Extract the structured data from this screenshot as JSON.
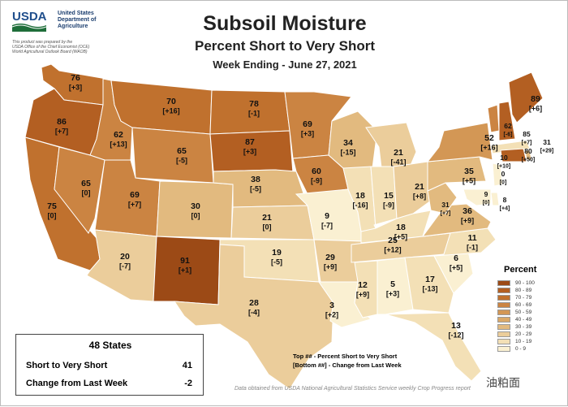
{
  "header": {
    "agency_short": "USDA",
    "agency_name": "United States\nDepartment of\nAgriculture",
    "credit": "This product was prepared by the\nUSDA Office of the Chief Economist (OCE)\nWorld Agricultural Outlook Board (WAOB)",
    "title": "Subsoil Moisture",
    "subtitle": "Percent Short to Very Short",
    "week": "Week Ending - June 27, 2021"
  },
  "states": [
    {
      "id": "WA",
      "value": "76",
      "change": "[+3]",
      "bin": 7
    },
    {
      "id": "OR",
      "value": "86",
      "change": "[+7]",
      "bin": 8
    },
    {
      "id": "CA",
      "value": "75",
      "change": "[0]",
      "bin": 7
    },
    {
      "id": "ID",
      "value": "62",
      "change": "[+13]",
      "bin": 6
    },
    {
      "id": "NV",
      "value": "65",
      "change": "[0]",
      "bin": 6
    },
    {
      "id": "MT",
      "value": "70",
      "change": "[+16]",
      "bin": 7
    },
    {
      "id": "WY",
      "value": "65",
      "change": "[-5]",
      "bin": 6
    },
    {
      "id": "UT",
      "value": "69",
      "change": "[+7]",
      "bin": 6
    },
    {
      "id": "AZ",
      "value": "20",
      "change": "[-7]",
      "bin": 2
    },
    {
      "id": "CO",
      "value": "30",
      "change": "[0]",
      "bin": 3
    },
    {
      "id": "NM",
      "value": "91",
      "change": "[+1]",
      "bin": 9
    },
    {
      "id": "ND",
      "value": "78",
      "change": "[-1]",
      "bin": 7
    },
    {
      "id": "SD",
      "value": "87",
      "change": "[+3]",
      "bin": 8
    },
    {
      "id": "NE",
      "value": "38",
      "change": "[-5]",
      "bin": 3
    },
    {
      "id": "KS",
      "value": "21",
      "change": "[0]",
      "bin": 2
    },
    {
      "id": "OK",
      "value": "19",
      "change": "[-5]",
      "bin": 1
    },
    {
      "id": "TX",
      "value": "28",
      "change": "[-4]",
      "bin": 2
    },
    {
      "id": "MN",
      "value": "69",
      "change": "[+3]",
      "bin": 6
    },
    {
      "id": "IA",
      "value": "60",
      "change": "[-9]",
      "bin": 6
    },
    {
      "id": "MO",
      "value": "9",
      "change": "[-7]",
      "bin": 0
    },
    {
      "id": "AR",
      "value": "29",
      "change": "[+9]",
      "bin": 2
    },
    {
      "id": "LA",
      "value": "3",
      "change": "[+2]",
      "bin": 0
    },
    {
      "id": "WI",
      "value": "34",
      "change": "[-15]",
      "bin": 3
    },
    {
      "id": "IL",
      "value": "18",
      "change": "[-16]",
      "bin": 1
    },
    {
      "id": "MI",
      "value": "21",
      "change": "[-41]",
      "bin": 2
    },
    {
      "id": "IN",
      "value": "15",
      "change": "[-9]",
      "bin": 1
    },
    {
      "id": "OH",
      "value": "21",
      "change": "[+8]",
      "bin": 2
    },
    {
      "id": "KY",
      "value": "18",
      "change": "[+5]",
      "bin": 1
    },
    {
      "id": "TN",
      "value": "25",
      "change": "[+12]",
      "bin": 2
    },
    {
      "id": "MS",
      "value": "12",
      "change": "[+9]",
      "bin": 1
    },
    {
      "id": "AL",
      "value": "5",
      "change": "[+3]",
      "bin": 0
    },
    {
      "id": "GA",
      "value": "17",
      "change": "[-13]",
      "bin": 1
    },
    {
      "id": "FL",
      "value": "13",
      "change": "[-12]",
      "bin": 1
    },
    {
      "id": "SC",
      "value": "6",
      "change": "[+5]",
      "bin": 0
    },
    {
      "id": "NC",
      "value": "11",
      "change": "[-1]",
      "bin": 1
    },
    {
      "id": "VA",
      "value": "36",
      "change": "[+9]",
      "bin": 3
    },
    {
      "id": "WV",
      "value": "31",
      "change": "[+7]",
      "bin": 3
    },
    {
      "id": "PA",
      "value": "35",
      "change": "[+5]",
      "bin": 3
    },
    {
      "id": "NY",
      "value": "52",
      "change": "[+16]",
      "bin": 5
    },
    {
      "id": "VT",
      "value": "62",
      "change": "[-6]",
      "bin": 6
    },
    {
      "id": "NH",
      "value": "85",
      "change": "[+7]",
      "bin": 8
    },
    {
      "id": "ME",
      "value": "89",
      "change": "[+6]",
      "bin": 8
    },
    {
      "id": "MA",
      "value": "10",
      "change": "[+10]",
      "bin": 1
    },
    {
      "id": "CT",
      "value": "80",
      "change": "[+50]",
      "bin": 8
    },
    {
      "id": "RI",
      "value": "31",
      "change": "[+29]",
      "bin": 3
    },
    {
      "id": "NJ",
      "value": "0",
      "change": "[0]",
      "bin": 0
    },
    {
      "id": "DE",
      "value": "8",
      "change": "[+4]",
      "bin": 0
    },
    {
      "id": "MD",
      "value": "9",
      "change": "[0]",
      "bin": 0
    }
  ],
  "legend": {
    "title": "Percent",
    "bins": [
      {
        "label": "90 - 100",
        "color": "#9c4a16"
      },
      {
        "label": "80 - 89",
        "color": "#b35f22"
      },
      {
        "label": "70 - 79",
        "color": "#c0712e"
      },
      {
        "label": "60 - 69",
        "color": "#cb8442"
      },
      {
        "label": "50 - 59",
        "color": "#d39755"
      },
      {
        "label": "40 - 49",
        "color": "#daa867"
      },
      {
        "label": "30 - 39",
        "color": "#e2ba7f"
      },
      {
        "label": "20 - 29",
        "color": "#ebcd9b"
      },
      {
        "label": "10 - 19",
        "color": "#f3e0b6"
      },
      {
        "label": "0 - 9",
        "color": "#faf0d2"
      }
    ]
  },
  "summary": {
    "title": "48 States",
    "short_label": "Short to Very Short",
    "short_value": "41",
    "change_label": "Change from Last Week",
    "change_value": "-2"
  },
  "key": {
    "line1": "Top ## - Percent Short to Very Short",
    "line2": "[Bottom ##] - Change from Last Week"
  },
  "source": "Data obtained from USDA National Agricultural Statistics Service weekly Crop Progress report",
  "watermark": "油粕面"
}
